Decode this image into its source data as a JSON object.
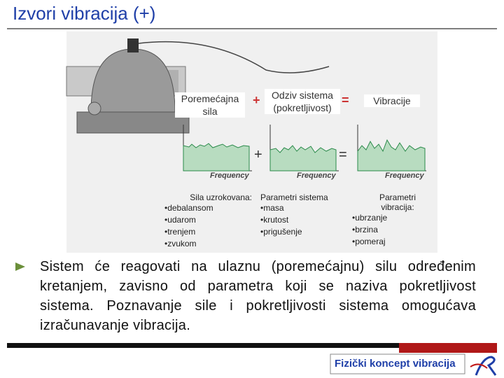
{
  "header": {
    "title": "Izvori vibracija (+)"
  },
  "diagram": {
    "columns": [
      {
        "label": "Poremećajna sila",
        "axis_label": "Frequency",
        "params_title": "Sila uzrokovana:",
        "params": [
          "•debalansom",
          "•udarom",
          "•trenjem",
          "•zvukom"
        ]
      },
      {
        "label": "Odziv sistema (pokretljivost)",
        "axis_label": "Frequency",
        "params_title": "Parametri sistema",
        "params": [
          "•masa",
          "•krutost",
          "•prigušenje"
        ]
      },
      {
        "label": "Vibracije",
        "axis_label": "Frequency",
        "params_title": "Parametri vibracija:",
        "params": [
          "•ubrzanje",
          "•brzina",
          "•pomeraj"
        ]
      }
    ],
    "operators_top": [
      "+",
      "="
    ],
    "operators_mid": [
      "+",
      "="
    ]
  },
  "body": {
    "text": "Sistem će reagovati na ulaznu (poremećajnu) silu određenim kretanjem, zavisno od parametra koji se naziva pokretljivost sistema. Poznavanje sile i pokretljivosti sistema omogućava izračunavanje vibracija."
  },
  "footer": {
    "text": "Fizički koncept vibracija"
  }
}
